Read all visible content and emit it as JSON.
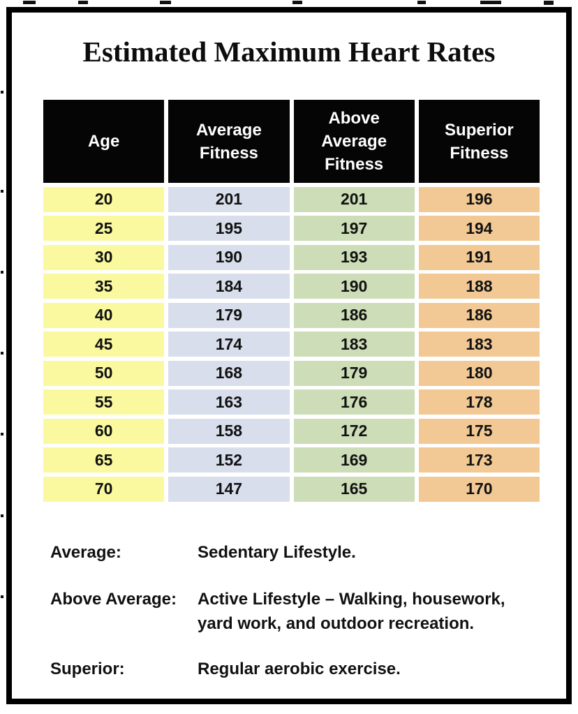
{
  "page": {
    "title": "Estimated Maximum Heart Rates"
  },
  "table": {
    "columns": [
      "Age",
      "Average Fitness",
      "Above Average Fitness",
      "Superior Fitness"
    ],
    "rows": [
      [
        20,
        201,
        201,
        196
      ],
      [
        25,
        195,
        197,
        194
      ],
      [
        30,
        190,
        193,
        191
      ],
      [
        35,
        184,
        190,
        188
      ],
      [
        40,
        179,
        186,
        186
      ],
      [
        45,
        174,
        183,
        183
      ],
      [
        50,
        168,
        179,
        180
      ],
      [
        55,
        163,
        176,
        178
      ],
      [
        60,
        158,
        172,
        175
      ],
      [
        65,
        152,
        169,
        173
      ],
      [
        70,
        147,
        165,
        170
      ]
    ]
  },
  "legend": [
    {
      "label": "Average:",
      "description": "Sedentary Lifestyle."
    },
    {
      "label": "Above Average:",
      "description": "Active Lifestyle – Walking, housework, yard work, and outdoor recreation."
    },
    {
      "label": "Superior:",
      "description": "Regular aerobic exercise."
    }
  ],
  "colors": {
    "header_bg": "#050505",
    "header_text": "#ffffff",
    "frame_border": "#000000",
    "columns": [
      "#faf9a0",
      "#d9deec",
      "#cdddb7",
      "#f2c994"
    ]
  },
  "chart_data": {
    "type": "table",
    "title": "Estimated Maximum Heart Rates",
    "columns": [
      "Age",
      "Average Fitness",
      "Above Average Fitness",
      "Superior Fitness"
    ],
    "rows": [
      [
        20,
        201,
        201,
        196
      ],
      [
        25,
        195,
        197,
        194
      ],
      [
        30,
        190,
        193,
        191
      ],
      [
        35,
        184,
        190,
        188
      ],
      [
        40,
        179,
        186,
        186
      ],
      [
        45,
        174,
        183,
        183
      ],
      [
        50,
        168,
        179,
        180
      ],
      [
        55,
        163,
        176,
        178
      ],
      [
        60,
        158,
        172,
        175
      ],
      [
        65,
        152,
        169,
        173
      ],
      [
        70,
        147,
        165,
        170
      ]
    ],
    "notes": [
      "Average: Sedentary Lifestyle.",
      "Above Average: Active Lifestyle – Walking, housework, yard work, and outdoor recreation.",
      "Superior: Regular aerobic exercise."
    ],
    "column_colors": [
      "#faf9a0",
      "#d9deec",
      "#cdddb7",
      "#f2c994"
    ]
  }
}
